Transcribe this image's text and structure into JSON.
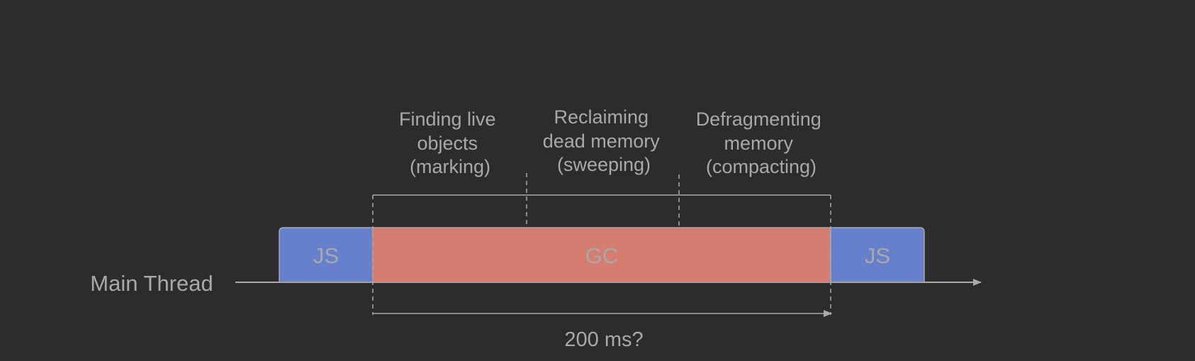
{
  "colors": {
    "background": "#2c2c2c",
    "js_block": "#6680cc",
    "gc_block": "#d67d72",
    "text": "#a9a9a9",
    "line": "#a9a9a9"
  },
  "thread": {
    "label": "Main Thread"
  },
  "blocks": {
    "js_left": "JS",
    "gc": "GC",
    "js_right": "JS"
  },
  "phases": [
    {
      "lines": [
        "Finding live",
        "objects",
        "(marking)"
      ]
    },
    {
      "lines": [
        "Reclaiming",
        "dead memory",
        "(sweeping)"
      ]
    },
    {
      "lines": [
        "Defragmenting",
        "memory",
        "(compacting)"
      ]
    }
  ],
  "duration": {
    "label": "200 ms?"
  }
}
